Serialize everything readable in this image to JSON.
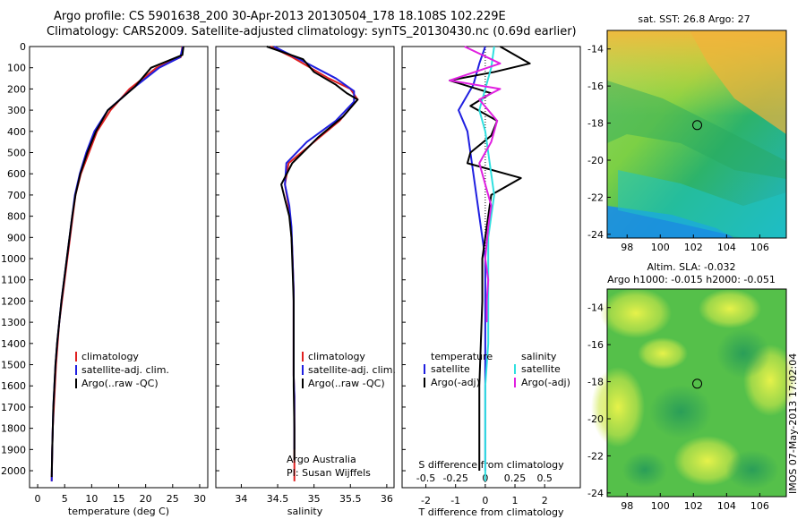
{
  "header": {
    "title_line1": "Argo profile: CS 5901638_200 30-Apr-2013 20130504_178 18.108S 102.229E",
    "title_line2": "Climatology: CARS2009. Satellite-adjusted climatology: synTS_20130430.nc (0.69d earlier)"
  },
  "colors": {
    "climatology": "#e02020",
    "satellite": "#1f1fe0",
    "argo": "#000000",
    "sal_satellite": "#30e0e0",
    "sal_argo": "#e020e0"
  },
  "chart_data": [
    {
      "id": "temperature",
      "type": "line",
      "xlabel": "temperature (deg C)",
      "ylabel": "",
      "xlim": [
        -1.5,
        31.5
      ],
      "ylim": [
        2080,
        0
      ],
      "xticks": [
        0,
        5,
        10,
        15,
        20,
        25,
        30
      ],
      "yticks": [
        0,
        100,
        200,
        300,
        400,
        500,
        600,
        700,
        800,
        900,
        1000,
        1100,
        1200,
        1300,
        1400,
        1500,
        1600,
        1700,
        1800,
        1900,
        2000
      ],
      "legend": [
        "climatology",
        "satellite-adj. clim.",
        "Argo(..raw -QC)"
      ],
      "legend_position": "bottom-left",
      "series": [
        {
          "name": "climatology",
          "color": "#e02020",
          "x": [
            26.8,
            26.5,
            22,
            17,
            13.5,
            11,
            9.5,
            8,
            7,
            6.5,
            6,
            5.5,
            5,
            4.5,
            4,
            3.7,
            3.4,
            3.2,
            3,
            2.8,
            2.7,
            2.6
          ],
          "y": [
            0,
            50,
            100,
            200,
            300,
            400,
            500,
            600,
            700,
            800,
            900,
            1000,
            1100,
            1200,
            1300,
            1400,
            1500,
            1600,
            1700,
            1800,
            1900,
            2050
          ]
        },
        {
          "name": "satellite-adj. clim.",
          "color": "#1f1fe0",
          "x": [
            26.9,
            26.4,
            22.5,
            17.5,
            13,
            10.5,
            9,
            7.8,
            6.9,
            6.4,
            5.9,
            5.4,
            4.9,
            4.4,
            4,
            3.6,
            3.3,
            3.1,
            2.9,
            2.8,
            2.7,
            2.6
          ],
          "y": [
            0,
            50,
            100,
            200,
            300,
            400,
            500,
            600,
            700,
            800,
            900,
            1000,
            1100,
            1200,
            1300,
            1400,
            1500,
            1600,
            1700,
            1800,
            1900,
            2050
          ]
        },
        {
          "name": "Argo(..raw -QC)",
          "color": "#000000",
          "x": [
            27,
            26.8,
            21,
            18,
            13,
            10.8,
            9.2,
            7.9,
            7,
            6.4,
            5.9,
            5.4,
            4.9,
            4.4,
            4,
            3.6,
            3.3,
            3.1,
            2.9,
            2.8,
            2.7,
            2.6
          ],
          "y": [
            0,
            40,
            100,
            190,
            300,
            400,
            500,
            600,
            700,
            800,
            900,
            1000,
            1100,
            1200,
            1300,
            1400,
            1500,
            1600,
            1700,
            1800,
            1900,
            2030
          ]
        }
      ]
    },
    {
      "id": "salinity",
      "type": "line",
      "xlabel": "salinity",
      "ylabel": "",
      "xlim": [
        33.65,
        36.1
      ],
      "ylim": [
        2080,
        0
      ],
      "xticks": [
        34,
        34.5,
        35,
        35.5,
        36
      ],
      "legend": [
        "climatology",
        "satellite-adj. clim.",
        "Argo(..raw -QC)"
      ],
      "legend_position": "bottom-right",
      "annotations": [
        "Argo Australia",
        "PI: Susan Wijffels"
      ],
      "series": [
        {
          "name": "climatology",
          "color": "#e02020",
          "x": [
            34.4,
            34.7,
            35.2,
            35.5,
            35.6,
            35.35,
            35,
            34.65,
            34.6,
            34.65,
            34.68,
            34.7,
            34.71,
            34.72,
            34.72,
            34.72,
            34.72,
            34.72,
            34.73,
            34.73,
            34.73,
            34.73
          ],
          "y": [
            0,
            50,
            150,
            200,
            250,
            350,
            450,
            550,
            650,
            750,
            850,
            950,
            1050,
            1150,
            1250,
            1350,
            1450,
            1550,
            1650,
            1750,
            1900,
            2050
          ]
        },
        {
          "name": "satellite-adj. clim.",
          "color": "#1f1fe0",
          "x": [
            34.45,
            34.8,
            35.3,
            35.55,
            35.55,
            35.3,
            34.9,
            34.62,
            34.6,
            34.66,
            34.69,
            34.7,
            34.71,
            34.72,
            34.72,
            34.72,
            34.72,
            34.72,
            34.73,
            34.73,
            34.73
          ],
          "y": [
            0,
            60,
            150,
            210,
            260,
            350,
            450,
            550,
            650,
            750,
            850,
            950,
            1050,
            1150,
            1250,
            1350,
            1450,
            1550,
            1650,
            1750,
            1900
          ]
        },
        {
          "name": "Argo(..raw -QC)",
          "color": "#000000",
          "x": [
            34.35,
            34.85,
            35.0,
            35.3,
            35.45,
            35.6,
            35.4,
            35.05,
            34.7,
            34.55,
            34.6,
            34.66,
            34.69,
            34.7,
            34.71,
            34.72,
            34.72,
            34.72,
            34.72,
            34.72,
            34.73,
            34.73
          ],
          "y": [
            0,
            60,
            120,
            180,
            220,
            250,
            330,
            430,
            550,
            650,
            720,
            800,
            900,
            1000,
            1100,
            1200,
            1300,
            1400,
            1500,
            1600,
            1800,
            1950
          ]
        }
      ]
    },
    {
      "id": "difference",
      "type": "line",
      "xlabel": "T difference from climatology",
      "xlabel_top": "S difference from climatology",
      "xlim": [
        -2.8,
        3.2
      ],
      "ylim": [
        2080,
        0
      ],
      "xticks": [
        -2,
        -1,
        0,
        1,
        2
      ],
      "xtick_labels_top": [
        "-0.5",
        "-0.25",
        "0",
        "0.25",
        "0.5"
      ],
      "legend": [
        "temperature",
        "satellite",
        "Argo(-adj)",
        "salinity",
        "satellite",
        "Argo(-adj)"
      ],
      "legend_position": "bottom-center",
      "series": [
        {
          "name": "T satellite",
          "color": "#1f1fe0",
          "x": [
            0,
            -0.2,
            -0.4,
            -0.9,
            -0.6,
            -0.5,
            -0.4,
            -0.3,
            -0.2,
            -0.1,
            0,
            0,
            0,
            0,
            0,
            0
          ],
          "y": [
            0,
            80,
            180,
            300,
            400,
            500,
            600,
            700,
            800,
            900,
            1000,
            1200,
            1400,
            1600,
            1800,
            2000
          ]
        },
        {
          "name": "T Argo(-adj)",
          "color": "#000000",
          "x": [
            0.5,
            1.5,
            0.3,
            -1.2,
            0.2,
            -0.5,
            0.4,
            0.2,
            -0.5,
            -0.6,
            1.2,
            0.2,
            0.1,
            0,
            -0.1,
            -0.1,
            -0.15,
            -0.2,
            -0.2,
            -0.2
          ],
          "y": [
            0,
            80,
            120,
            160,
            220,
            280,
            350,
            420,
            500,
            550,
            620,
            700,
            800,
            900,
            1000,
            1200,
            1400,
            1600,
            1800,
            2000
          ]
        },
        {
          "name": "S satellite",
          "color": "#30e0e0",
          "x": [
            0.3,
            0.2,
            0,
            -0.2,
            0,
            0.1,
            0.2,
            0.3,
            0.2,
            0.1,
            0.1,
            0.1,
            0.1,
            0,
            0,
            0,
            0
          ],
          "y": [
            0,
            100,
            200,
            300,
            400,
            500,
            600,
            700,
            800,
            900,
            1000,
            1200,
            1400,
            1600,
            1800,
            2000,
            2050
          ]
        },
        {
          "name": "S Argo(-adj)",
          "color": "#e020e0",
          "x": [
            -0.7,
            0.5,
            -1.2,
            0.5,
            -0.2,
            0.4,
            0.2,
            -0.2,
            0,
            0.2,
            0.1,
            0,
            0.1,
            0.05,
            0.05
          ],
          "y": [
            0,
            80,
            160,
            200,
            250,
            350,
            450,
            550,
            650,
            750,
            850,
            1000,
            1100,
            1200,
            1300
          ]
        }
      ]
    }
  ],
  "maps": {
    "sst": {
      "title": "sat. SST: 26.8 Argo: 27",
      "xticks": [
        98,
        100,
        102,
        104,
        106
      ],
      "yticks": [
        -14,
        -16,
        -18,
        -20,
        -22,
        -24
      ],
      "marker_lon": 102.229,
      "marker_lat": -18.108
    },
    "sla": {
      "title_line1": "Altim. SLA: -0.032",
      "title_line2": "Argo h1000: -0.015 h2000: -0.051",
      "xticks": [
        98,
        100,
        102,
        104,
        106
      ],
      "yticks": [
        -14,
        -16,
        -18,
        -20,
        -22,
        -24
      ],
      "marker_lon": 102.229,
      "marker_lat": -18.108
    }
  },
  "stamp": "IMOS 07-May-2013 17:02:04"
}
